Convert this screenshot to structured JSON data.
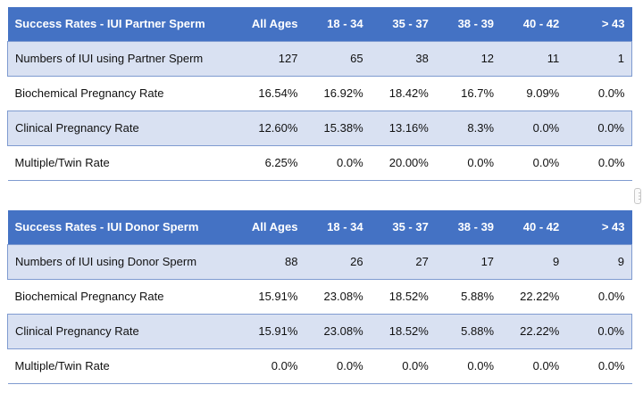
{
  "tables": [
    {
      "header": [
        "Success Rates - IUI Partner Sperm",
        "All Ages",
        "18 - 34",
        "35 - 37",
        "38 - 39",
        "40 - 42",
        "> 43"
      ],
      "rows": [
        {
          "label": "Numbers of IUI using Partner Sperm",
          "values": [
            "127",
            "65",
            "38",
            "12",
            "11",
            "1"
          ]
        },
        {
          "label": "Biochemical Pregnancy Rate",
          "values": [
            "16.54%",
            "16.92%",
            "18.42%",
            "16.7%",
            "9.09%",
            "0.0%"
          ]
        },
        {
          "label": "Clinical Pregnancy Rate",
          "values": [
            "12.60%",
            "15.38%",
            "13.16%",
            "8.3%",
            "0.0%",
            "0.0%"
          ]
        },
        {
          "label": "Multiple/Twin Rate",
          "values": [
            "6.25%",
            "0.0%",
            "20.00%",
            "0.0%",
            "0.0%",
            "0.0%"
          ]
        }
      ]
    },
    {
      "header": [
        "Success Rates - IUI Donor Sperm",
        "All Ages",
        "18 - 34",
        "35 - 37",
        "38 - 39",
        "40 - 42",
        "> 43"
      ],
      "rows": [
        {
          "label": "Numbers of IUI using Donor Sperm",
          "values": [
            "88",
            "26",
            "27",
            "17",
            "9",
            "9"
          ]
        },
        {
          "label": "Biochemical Pregnancy Rate",
          "values": [
            "15.91%",
            "23.08%",
            "18.52%",
            "5.88%",
            "22.22%",
            "0.0%"
          ]
        },
        {
          "label": "Clinical Pregnancy Rate",
          "values": [
            "15.91%",
            "23.08%",
            "18.52%",
            "5.88%",
            "22.22%",
            "0.0%"
          ]
        },
        {
          "label": "Multiple/Twin Rate",
          "values": [
            "0.0%",
            "0.0%",
            "0.0%",
            "0.0%",
            "0.0%",
            "0.0%"
          ]
        }
      ]
    }
  ],
  "colors": {
    "header_bg": "#4472c4",
    "shaded_row_bg": "#d9e1f2",
    "border": "#7f9bd0"
  },
  "scroll_handle": {
    "icon": "vertical-dots-icon",
    "glyph": "⋮"
  }
}
